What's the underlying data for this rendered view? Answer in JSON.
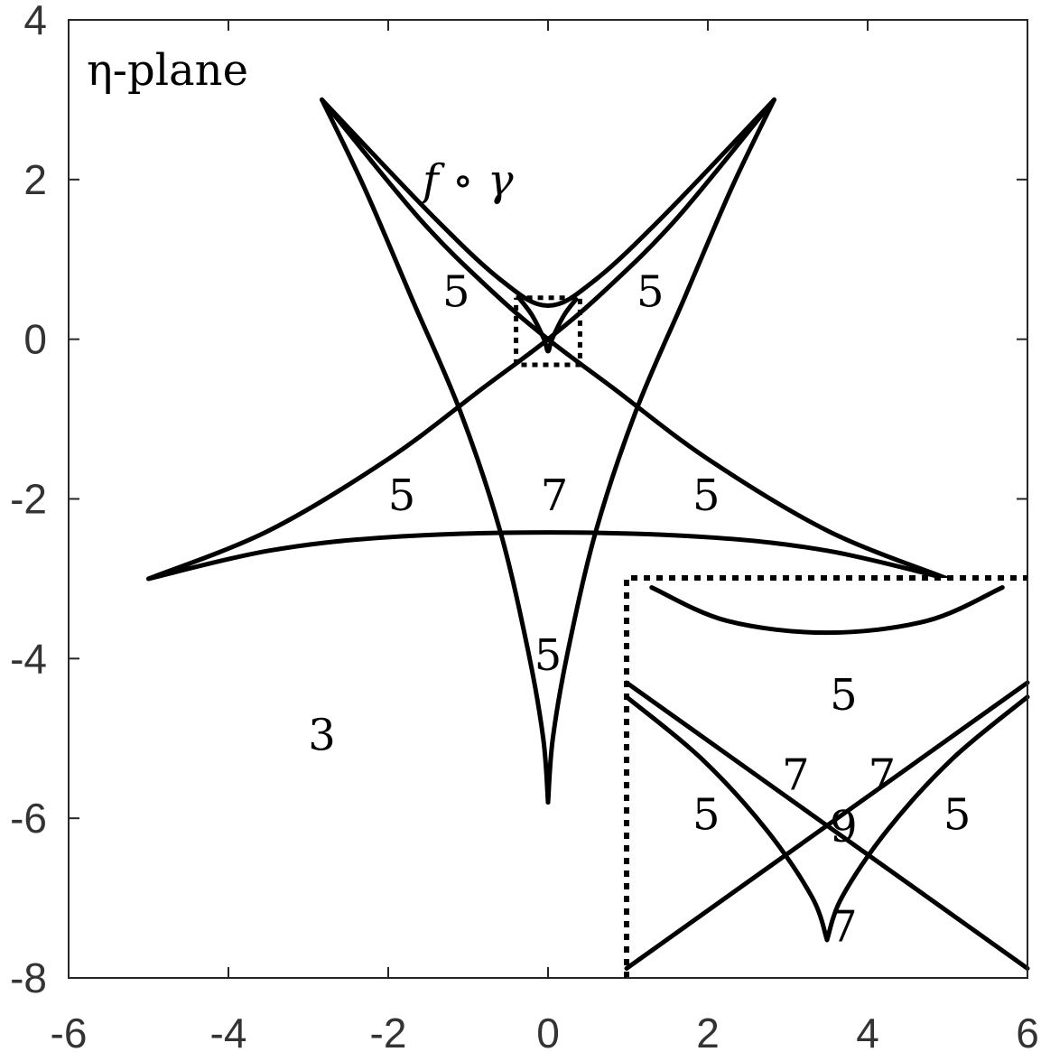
{
  "chart_data": {
    "type": "line",
    "title": "",
    "xlabel": "",
    "ylabel": "",
    "xlim": [
      -6,
      6
    ],
    "ylim": [
      -8,
      4
    ],
    "xticks": [
      "-6",
      "-4",
      "-2",
      "0",
      "2",
      "4",
      "6"
    ],
    "yticks": [
      "4",
      "2",
      "0",
      "-2",
      "-4",
      "-6",
      "-8"
    ],
    "grid": false,
    "plane_label": "η-plane",
    "curve_label": "f ∘ γ",
    "series": [
      {
        "style": "solid",
        "points": [
          [
            -2.83,
            3.0
          ],
          [
            -1.6,
            1.5
          ],
          [
            -0.7,
            0.6
          ],
          [
            0.0,
            0.0
          ],
          [
            0.8,
            -0.6
          ],
          [
            2.0,
            -1.5
          ],
          [
            3.5,
            -2.4
          ],
          [
            5.0,
            -3.0
          ]
        ]
      },
      {
        "style": "solid",
        "points": [
          [
            2.83,
            3.0
          ],
          [
            1.6,
            1.5
          ],
          [
            0.7,
            0.6
          ],
          [
            0.0,
            0.0
          ],
          [
            -0.8,
            -0.6
          ],
          [
            -2.0,
            -1.5
          ],
          [
            -3.5,
            -2.4
          ],
          [
            -5.0,
            -3.0
          ]
        ]
      },
      {
        "style": "solid",
        "points": [
          [
            -5.0,
            -3.0
          ],
          [
            -3.5,
            -2.65
          ],
          [
            -2.0,
            -2.48
          ],
          [
            0.0,
            -2.42
          ],
          [
            2.0,
            -2.48
          ],
          [
            3.5,
            -2.65
          ],
          [
            5.0,
            -3.0
          ]
        ]
      },
      {
        "style": "solid",
        "points": [
          [
            -2.83,
            3.0
          ],
          [
            -2.3,
            1.9
          ],
          [
            -1.7,
            0.5
          ],
          [
            -1.1,
            -0.9
          ],
          [
            -0.6,
            -2.4
          ],
          [
            -0.25,
            -3.9
          ],
          [
            -0.06,
            -5.0
          ],
          [
            0.0,
            -5.8
          ]
        ]
      },
      {
        "style": "solid",
        "points": [
          [
            2.83,
            3.0
          ],
          [
            2.3,
            1.9
          ],
          [
            1.7,
            0.5
          ],
          [
            1.1,
            -0.9
          ],
          [
            0.6,
            -2.4
          ],
          [
            0.25,
            -3.9
          ],
          [
            0.06,
            -5.0
          ],
          [
            0.0,
            -5.8
          ]
        ]
      },
      {
        "style": "solid",
        "points": [
          [
            -2.83,
            3.0
          ],
          [
            -1.5,
            1.6
          ],
          [
            -0.6,
            0.75
          ],
          [
            0.0,
            0.42
          ],
          [
            0.6,
            0.75
          ],
          [
            1.5,
            1.6
          ],
          [
            2.83,
            3.0
          ]
        ]
      },
      {
        "style": "solid",
        "points": [
          [
            -0.35,
            0.5
          ],
          [
            -0.2,
            0.3
          ],
          [
            -0.05,
            0.0
          ],
          [
            0.0,
            -0.15
          ],
          [
            0.05,
            0.0
          ],
          [
            0.2,
            0.3
          ],
          [
            0.35,
            0.5
          ]
        ]
      },
      {
        "style": "dotted",
        "points": [
          [
            -0.4,
            0.52
          ],
          [
            0.4,
            0.52
          ],
          [
            0.4,
            -0.32
          ],
          [
            -0.4,
            -0.32
          ],
          [
            -0.4,
            0.52
          ]
        ]
      }
    ],
    "inset": {
      "xlim": [
        -0.4,
        0.4
      ],
      "ylim": [
        -0.32,
        0.52
      ],
      "series": [
        {
          "style": "solid",
          "points": [
            [
              -0.35,
              0.5
            ],
            [
              -0.2,
              0.43
            ],
            [
              0.0,
              0.405
            ],
            [
              0.2,
              0.43
            ],
            [
              0.35,
              0.5
            ]
          ]
        },
        {
          "style": "solid",
          "points": [
            [
              -0.4,
              0.3
            ],
            [
              -0.2,
              0.15
            ],
            [
              0.0,
              0.0
            ],
            [
              0.2,
              -0.15
            ],
            [
              0.4,
              -0.3
            ]
          ]
        },
        {
          "style": "solid",
          "points": [
            [
              0.4,
              0.3
            ],
            [
              0.2,
              0.15
            ],
            [
              0.0,
              0.0
            ],
            [
              -0.2,
              -0.15
            ],
            [
              -0.4,
              -0.3
            ]
          ]
        },
        {
          "style": "solid",
          "points": [
            [
              -0.4,
              0.27
            ],
            [
              -0.25,
              0.14
            ],
            [
              -0.12,
              -0.01
            ],
            [
              -0.03,
              -0.15
            ],
            [
              0.0,
              -0.24
            ]
          ]
        },
        {
          "style": "solid",
          "points": [
            [
              0.4,
              0.27
            ],
            [
              0.25,
              0.14
            ],
            [
              0.12,
              -0.01
            ],
            [
              0.03,
              -0.15
            ],
            [
              0.0,
              -0.24
            ]
          ]
        }
      ]
    },
    "annotations": [
      {
        "text": "5",
        "x": -1.15,
        "y": 0.6
      },
      {
        "text": "5",
        "x": 1.28,
        "y": 0.6
      },
      {
        "text": "5",
        "x": -1.83,
        "y": -1.95
      },
      {
        "text": "7",
        "x": 0.08,
        "y": -1.95
      },
      {
        "text": "5",
        "x": 1.98,
        "y": -1.95
      },
      {
        "text": "5",
        "x": 0.0,
        "y": -3.95
      },
      {
        "text": "3",
        "x": -2.83,
        "y": -4.95
      },
      {
        "text": "5",
        "x": 3.7,
        "y": -4.45
      },
      {
        "text": "7",
        "x": 3.1,
        "y": -5.45
      },
      {
        "text": "7",
        "x": 4.18,
        "y": -5.45
      },
      {
        "text": "5",
        "x": 1.98,
        "y": -5.95
      },
      {
        "text": "9",
        "x": 3.7,
        "y": -6.1
      },
      {
        "text": "5",
        "x": 5.12,
        "y": -5.95
      },
      {
        "text": "7",
        "x": 3.7,
        "y": -7.35
      }
    ]
  }
}
